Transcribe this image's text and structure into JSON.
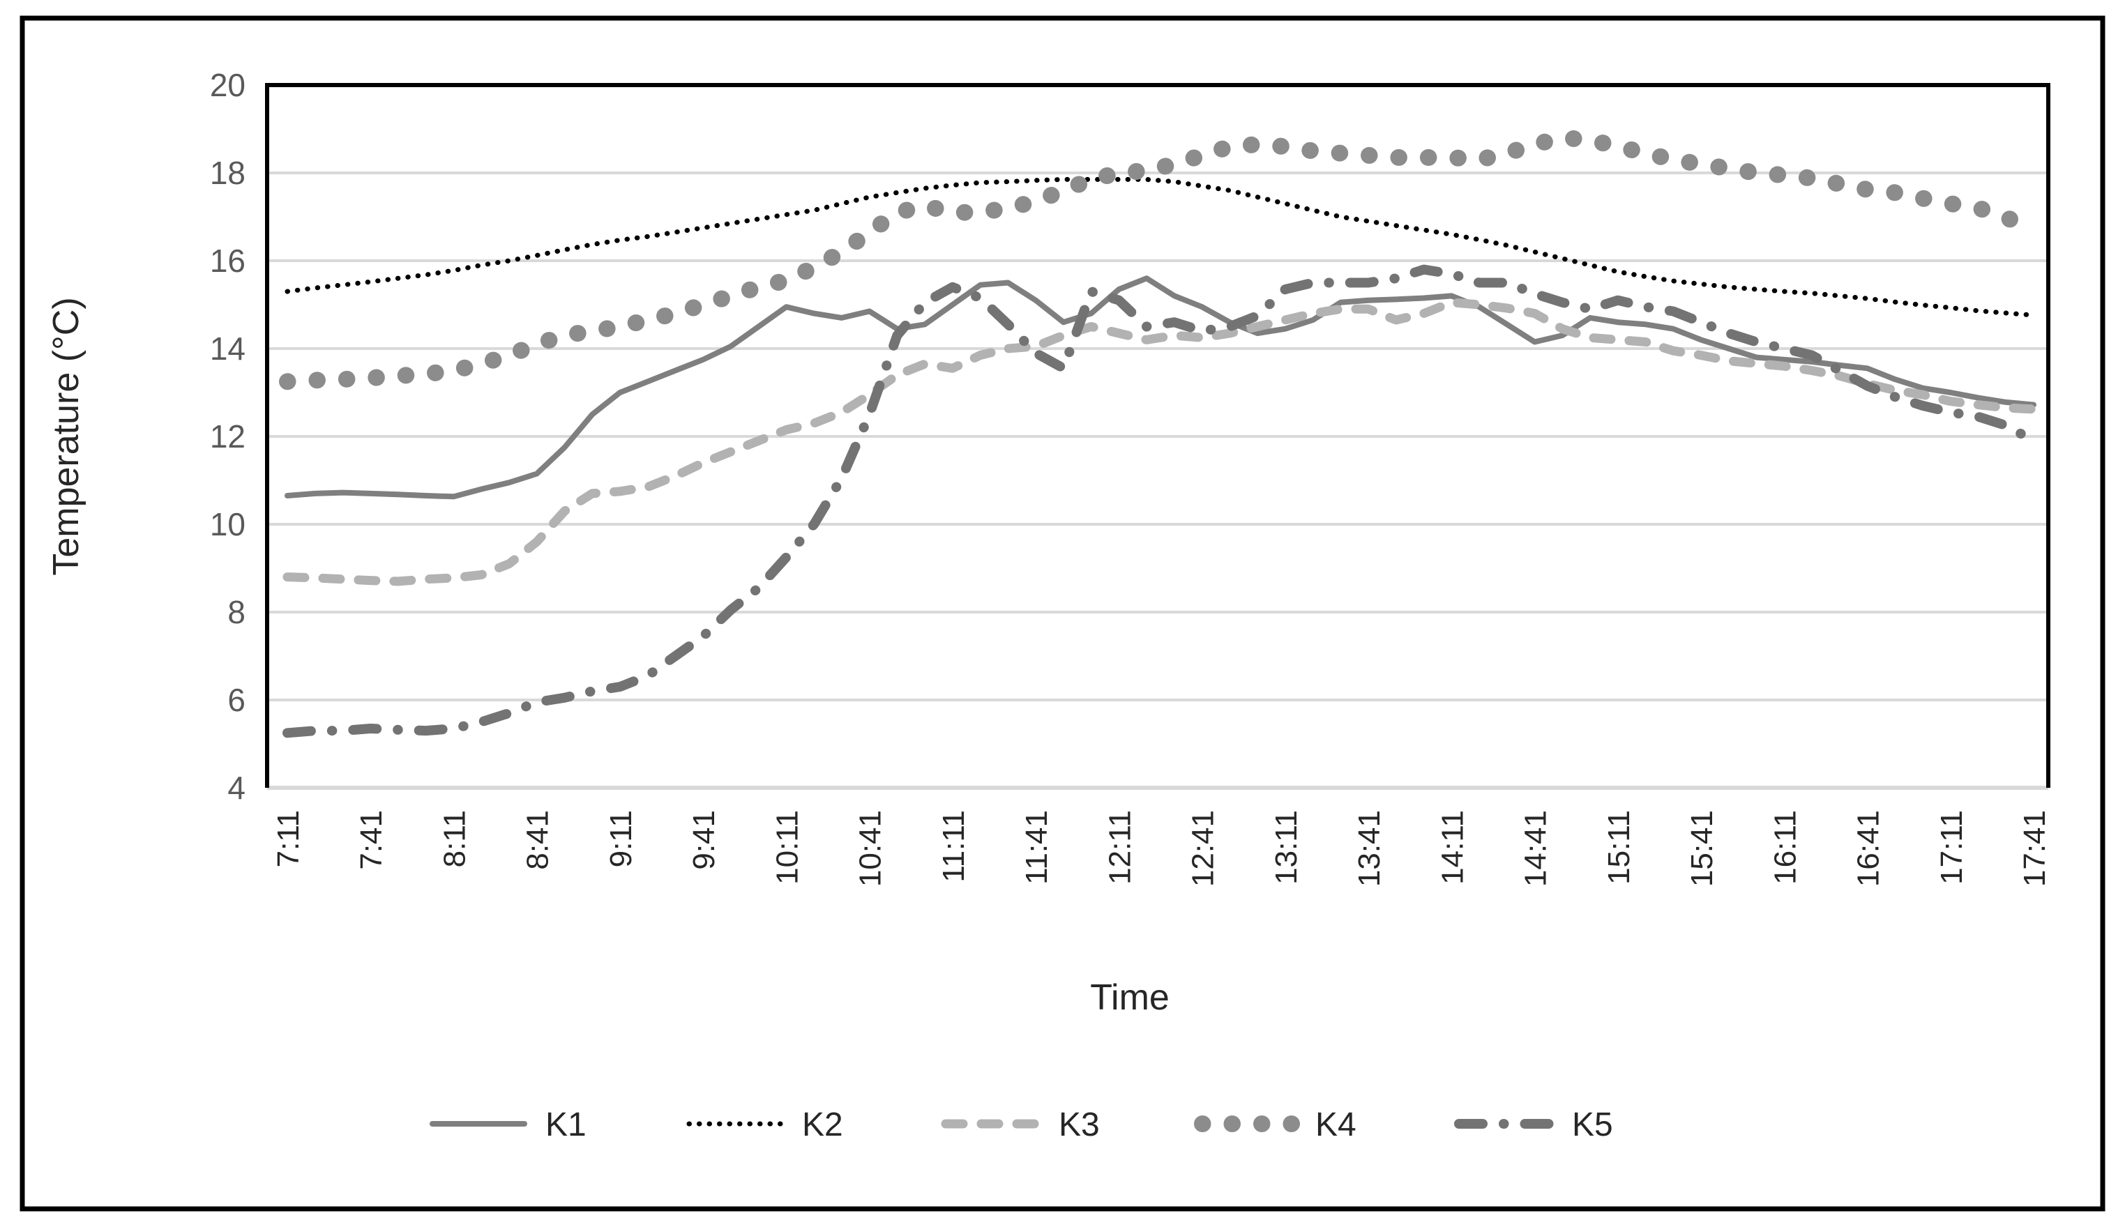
{
  "figure": {
    "background": "#ffffff",
    "outer_border_color": "#000000",
    "outer_border_width": 7
  },
  "chart_data": {
    "type": "line",
    "title": "",
    "xlabel": "Time",
    "ylabel": "Temperature (°C)",
    "ylim": [
      4,
      20
    ],
    "yticks": [
      20,
      18,
      16,
      14,
      12,
      10,
      8,
      6,
      4
    ],
    "grid": true,
    "gridline_color": "#d9d9d9",
    "plot_border_color": "#000000",
    "axis_line_color": "#d9d9d9",
    "y_tick_label_color": "#595959",
    "x_tick_label_color": "#262626",
    "axis_title_color": "#262626",
    "legend_position": "bottom",
    "legend_text_color": "#262626",
    "x_label_every": 3,
    "categories": [
      "7:11",
      "7:21",
      "7:31",
      "7:41",
      "7:51",
      "8:01",
      "8:11",
      "8:21",
      "8:31",
      "8:41",
      "8:51",
      "9:01",
      "9:11",
      "9:21",
      "9:31",
      "9:41",
      "9:51",
      "10:01",
      "10:11",
      "10:21",
      "10:31",
      "10:41",
      "10:51",
      "11:01",
      "11:11",
      "11:21",
      "11:31",
      "11:41",
      "11:51",
      "12:01",
      "12:11",
      "12:21",
      "12:31",
      "12:41",
      "12:51",
      "13:01",
      "13:11",
      "13:21",
      "13:31",
      "13:41",
      "13:51",
      "14:01",
      "14:11",
      "14:21",
      "14:31",
      "14:41",
      "14:51",
      "15:01",
      "15:11",
      "15:21",
      "15:31",
      "15:41",
      "15:51",
      "16:01",
      "16:11",
      "16:21",
      "16:31",
      "16:41",
      "16:51",
      "17:01",
      "17:11",
      "17:21",
      "17:31",
      "17:41"
    ],
    "series": [
      {
        "name": "K1",
        "color": "#7f7f7f",
        "style": "solid",
        "width": 8,
        "values": [
          10.65,
          10.7,
          10.72,
          10.7,
          10.68,
          10.65,
          10.63,
          10.8,
          10.95,
          11.15,
          11.75,
          12.5,
          13.0,
          13.25,
          13.5,
          13.75,
          14.05,
          14.5,
          14.95,
          14.8,
          14.7,
          14.85,
          14.45,
          14.55,
          15.0,
          15.45,
          15.5,
          15.1,
          14.6,
          14.8,
          15.35,
          15.6,
          15.2,
          14.95,
          14.6,
          14.35,
          14.45,
          14.65,
          15.05,
          15.1,
          15.12,
          15.15,
          15.2,
          14.95,
          14.55,
          14.15,
          14.3,
          14.7,
          14.6,
          14.55,
          14.45,
          14.2,
          14.0,
          13.8,
          13.75,
          13.7,
          13.62,
          13.55,
          13.3,
          13.1,
          13.0,
          12.88,
          12.78,
          12.72
        ]
      },
      {
        "name": "K2",
        "color": "#000000",
        "style": "dot-fine",
        "width": 7,
        "values": [
          15.3,
          15.38,
          15.45,
          15.52,
          15.6,
          15.68,
          15.78,
          15.9,
          16.0,
          16.12,
          16.25,
          16.37,
          16.47,
          16.55,
          16.65,
          16.75,
          16.85,
          16.95,
          17.05,
          17.15,
          17.3,
          17.45,
          17.55,
          17.65,
          17.72,
          17.78,
          17.8,
          17.83,
          17.85,
          17.85,
          17.85,
          17.85,
          17.8,
          17.7,
          17.6,
          17.45,
          17.3,
          17.15,
          17.0,
          16.9,
          16.8,
          16.7,
          16.6,
          16.48,
          16.35,
          16.2,
          16.05,
          15.9,
          15.75,
          15.64,
          15.54,
          15.47,
          15.4,
          15.35,
          15.3,
          15.26,
          15.2,
          15.14,
          15.06,
          14.99,
          14.93,
          14.86,
          14.81,
          14.76
        ]
      },
      {
        "name": "K3",
        "color": "#b2b2b2",
        "style": "dash",
        "width": 13,
        "values": [
          8.8,
          8.78,
          8.75,
          8.72,
          8.7,
          8.75,
          8.78,
          8.85,
          9.1,
          9.6,
          10.3,
          10.7,
          10.75,
          10.85,
          11.1,
          11.4,
          11.65,
          11.9,
          12.15,
          12.3,
          12.55,
          12.95,
          13.4,
          13.65,
          13.55,
          13.85,
          14.0,
          14.05,
          14.3,
          14.5,
          14.35,
          14.2,
          14.3,
          14.25,
          14.35,
          14.5,
          14.65,
          14.8,
          14.9,
          14.9,
          14.65,
          14.8,
          15.05,
          15.0,
          14.92,
          14.8,
          14.45,
          14.25,
          14.2,
          14.15,
          13.95,
          13.85,
          13.72,
          13.66,
          13.6,
          13.5,
          13.38,
          13.2,
          13.05,
          12.95,
          12.8,
          12.72,
          12.65,
          12.62
        ]
      },
      {
        "name": "K4",
        "color": "#8c8c8c",
        "style": "dot-round",
        "width": 24,
        "values": [
          13.25,
          13.28,
          13.3,
          13.33,
          13.38,
          13.42,
          13.5,
          13.65,
          13.85,
          14.1,
          14.3,
          14.4,
          14.5,
          14.65,
          14.8,
          15.0,
          15.2,
          15.4,
          15.55,
          15.85,
          16.2,
          16.65,
          17.1,
          17.25,
          17.1,
          17.1,
          17.2,
          17.35,
          17.6,
          17.85,
          18.0,
          18.05,
          18.2,
          18.4,
          18.6,
          18.65,
          18.6,
          18.5,
          18.45,
          18.4,
          18.35,
          18.35,
          18.35,
          18.3,
          18.45,
          18.65,
          18.8,
          18.75,
          18.6,
          18.45,
          18.3,
          18.2,
          18.1,
          18.0,
          17.95,
          17.88,
          17.75,
          17.62,
          17.55,
          17.42,
          17.3,
          17.2,
          17.0,
          16.62
        ]
      },
      {
        "name": "K5",
        "color": "#737373",
        "style": "dash-dot",
        "width": 14,
        "values": [
          5.25,
          5.3,
          5.3,
          5.35,
          5.32,
          5.3,
          5.35,
          5.5,
          5.7,
          5.95,
          6.05,
          6.2,
          6.3,
          6.55,
          7.0,
          7.45,
          8.05,
          8.55,
          9.25,
          10.0,
          11.05,
          12.5,
          14.3,
          15.05,
          15.4,
          15.15,
          14.55,
          13.9,
          13.55,
          15.3,
          15.1,
          14.5,
          14.6,
          14.4,
          14.5,
          14.75,
          15.35,
          15.5,
          15.5,
          15.5,
          15.6,
          15.8,
          15.7,
          15.5,
          15.5,
          15.25,
          15.05,
          14.9,
          15.1,
          14.95,
          14.85,
          14.6,
          14.35,
          14.15,
          14.0,
          13.85,
          13.5,
          13.15,
          12.9,
          12.7,
          12.55,
          12.45,
          12.25,
          11.9
        ]
      }
    ],
    "legend_labels": [
      "K1",
      "K2",
      "K3",
      "K4",
      "K5"
    ]
  }
}
